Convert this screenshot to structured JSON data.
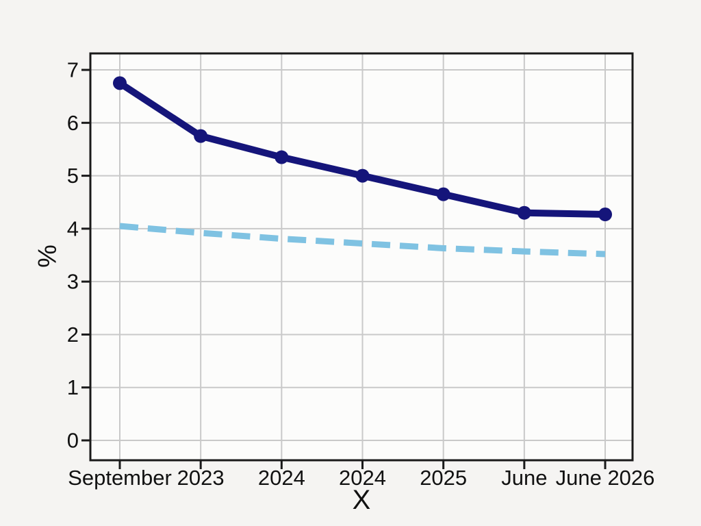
{
  "page": {
    "background_color": "#f5f4f2"
  },
  "chart_data": {
    "type": "line",
    "title": "",
    "xlabel": "X",
    "ylabel": "%",
    "x_tick_labels": [
      "September",
      "2023",
      "2024",
      "2024",
      "2025",
      "June",
      "June 2026"
    ],
    "y_tick_values": [
      0,
      1,
      2,
      3,
      4,
      5,
      6,
      7
    ],
    "ylim": [
      0,
      7
    ],
    "grid": true,
    "legend_position": "none",
    "series": [
      {
        "name": "solid-navy-line",
        "color": "#15157a",
        "line_style": "solid",
        "markers": true,
        "values": [
          6.75,
          5.75,
          5.35,
          5.0,
          4.65,
          4.3,
          4.27
        ]
      },
      {
        "name": "dashed-lightblue-line",
        "color": "#7fc2e2",
        "line_style": "dashed",
        "markers": false,
        "values": [
          4.05,
          3.92,
          3.81,
          3.72,
          3.63,
          3.57,
          3.52
        ]
      }
    ],
    "style": {
      "grid_color": "#c9c9c9",
      "frame_color": "#1a1a1a",
      "plot_background": "#fcfcfb",
      "text_color": "#111111"
    }
  }
}
